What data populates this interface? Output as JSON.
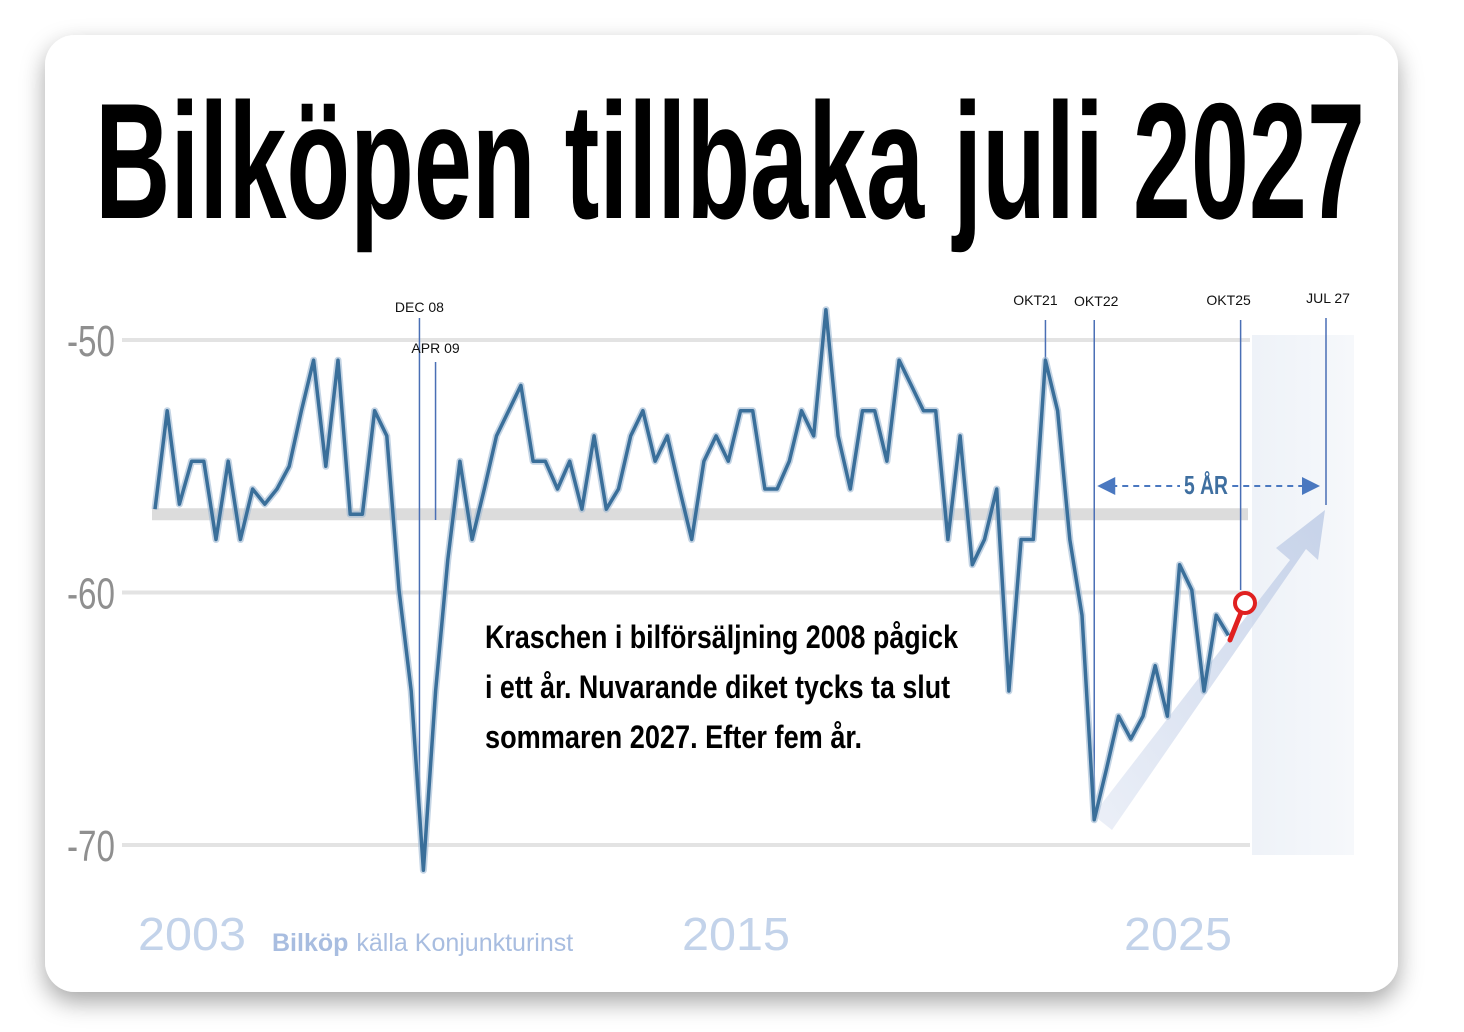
{
  "chart_data": {
    "type": "line",
    "title": "Bilköpen tillbaka juli 2027",
    "color": "#3a6f9a",
    "x": [
      2003.5,
      2003.75,
      2004,
      2004.25,
      2004.5,
      2004.75,
      2005,
      2005.25,
      2005.5,
      2005.75,
      2006,
      2006.25,
      2006.5,
      2006.75,
      2007,
      2007.25,
      2007.5,
      2007.75,
      2008,
      2008.25,
      2008.5,
      2008.75,
      2009,
      2009.25,
      2009.5,
      2009.75,
      2010,
      2010.25,
      2010.5,
      2010.75,
      2011,
      2011.25,
      2011.5,
      2011.75,
      2012,
      2012.25,
      2012.5,
      2012.75,
      2013,
      2013.25,
      2013.5,
      2013.75,
      2014,
      2014.25,
      2014.5,
      2014.75,
      2015,
      2015.25,
      2015.5,
      2015.75,
      2016,
      2016.25,
      2016.5,
      2016.75,
      2017,
      2017.25,
      2017.5,
      2017.75,
      2018,
      2018.25,
      2018.5,
      2018.75,
      2019,
      2019.25,
      2019.5,
      2019.75,
      2020,
      2020.25,
      2020.5,
      2020.75,
      2021,
      2021.25,
      2021.5,
      2021.75,
      2022,
      2022.25,
      2022.5,
      2022.75,
      2023,
      2023.25,
      2023.5,
      2023.75,
      2024,
      2024.25,
      2024.5,
      2024.75,
      2025,
      2025.25,
      2025.5
    ],
    "values": [
      -56.7,
      -52.8,
      -56.5,
      -54.8,
      -54.8,
      -57.9,
      -54.8,
      -57.9,
      -55.9,
      -56.5,
      -55.9,
      -55,
      -52.8,
      -50.8,
      -55,
      -50.8,
      -56.9,
      -56.9,
      -52.8,
      -53.8,
      -59.9,
      -63.9,
      -71,
      -63.9,
      -58.7,
      -54.8,
      -57.9,
      -55.9,
      -53.8,
      -52.8,
      -51.8,
      -54.8,
      -54.8,
      -55.9,
      -54.8,
      -56.7,
      -53.8,
      -56.7,
      -55.9,
      -53.8,
      -52.8,
      -54.8,
      -53.8,
      -55.9,
      -57.9,
      -54.8,
      -53.8,
      -54.8,
      -52.8,
      -52.8,
      -55.9,
      -55.9,
      -54.8,
      -52.8,
      -53.8,
      -48.8,
      -53.8,
      -55.9,
      -52.8,
      -52.8,
      -54.8,
      -50.8,
      -51.8,
      -52.8,
      -52.8,
      -57.9,
      -53.8,
      -58.9,
      -57.9,
      -55.9,
      -63.9,
      -57.9,
      -57.9,
      -50.8,
      -52.8,
      -57.9,
      -60.9,
      -69,
      -67,
      -64.9,
      -65.8,
      -64.9,
      -62.9,
      -64.9,
      -58.9,
      -59.9,
      -63.9,
      -60.9,
      -61.7
    ],
    "xlim": [
      2003.5,
      2027.5
    ],
    "ylim": [
      -72,
      -48
    ],
    "yticks": [
      -50,
      -60,
      -70
    ],
    "grid": true,
    "reference_value": -56.9,
    "markers": [
      {
        "label": "DEC 08",
        "x": 2008.92
      },
      {
        "label": "APR 09",
        "x": 2009.25
      },
      {
        "label": "OKT21",
        "x": 2021.75
      },
      {
        "label": "OKT22",
        "x": 2022.75
      },
      {
        "label": "OKT25",
        "x": 2025.75
      },
      {
        "label": "JUL 27",
        "x": 2027.5
      }
    ],
    "span_label": "5 ÅR",
    "annotation": [
      "Kraschen i bilförsäljning 2008 pågick",
      "i ett år. Nuvarande diket tycks ta slut",
      "sommaren 2027. Efter fem år."
    ],
    "period_labels": [
      "2003",
      "2015",
      "2025"
    ],
    "source": [
      "Bilköp",
      "källa Konjunkturinst"
    ]
  }
}
